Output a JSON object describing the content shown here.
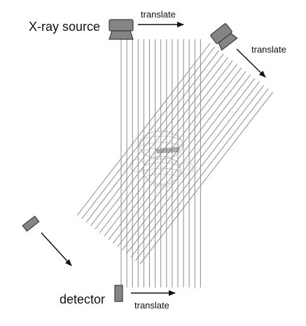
{
  "labels": {
    "source": "X-ray source",
    "detector": "detector",
    "translate_top": "translate",
    "translate_diag": "translate",
    "translate_bottom": "translate"
  },
  "colors": {
    "ray": "#8c8c8c",
    "device_fill": "#858585",
    "device_stroke": "#3a3a3a",
    "arrow": "#111111",
    "phantom": "#9a9a9a"
  },
  "icons": {
    "source": "xray-tube-icon",
    "detector": "detector-element-icon",
    "phantom": "mummy-phantom-icon"
  }
}
